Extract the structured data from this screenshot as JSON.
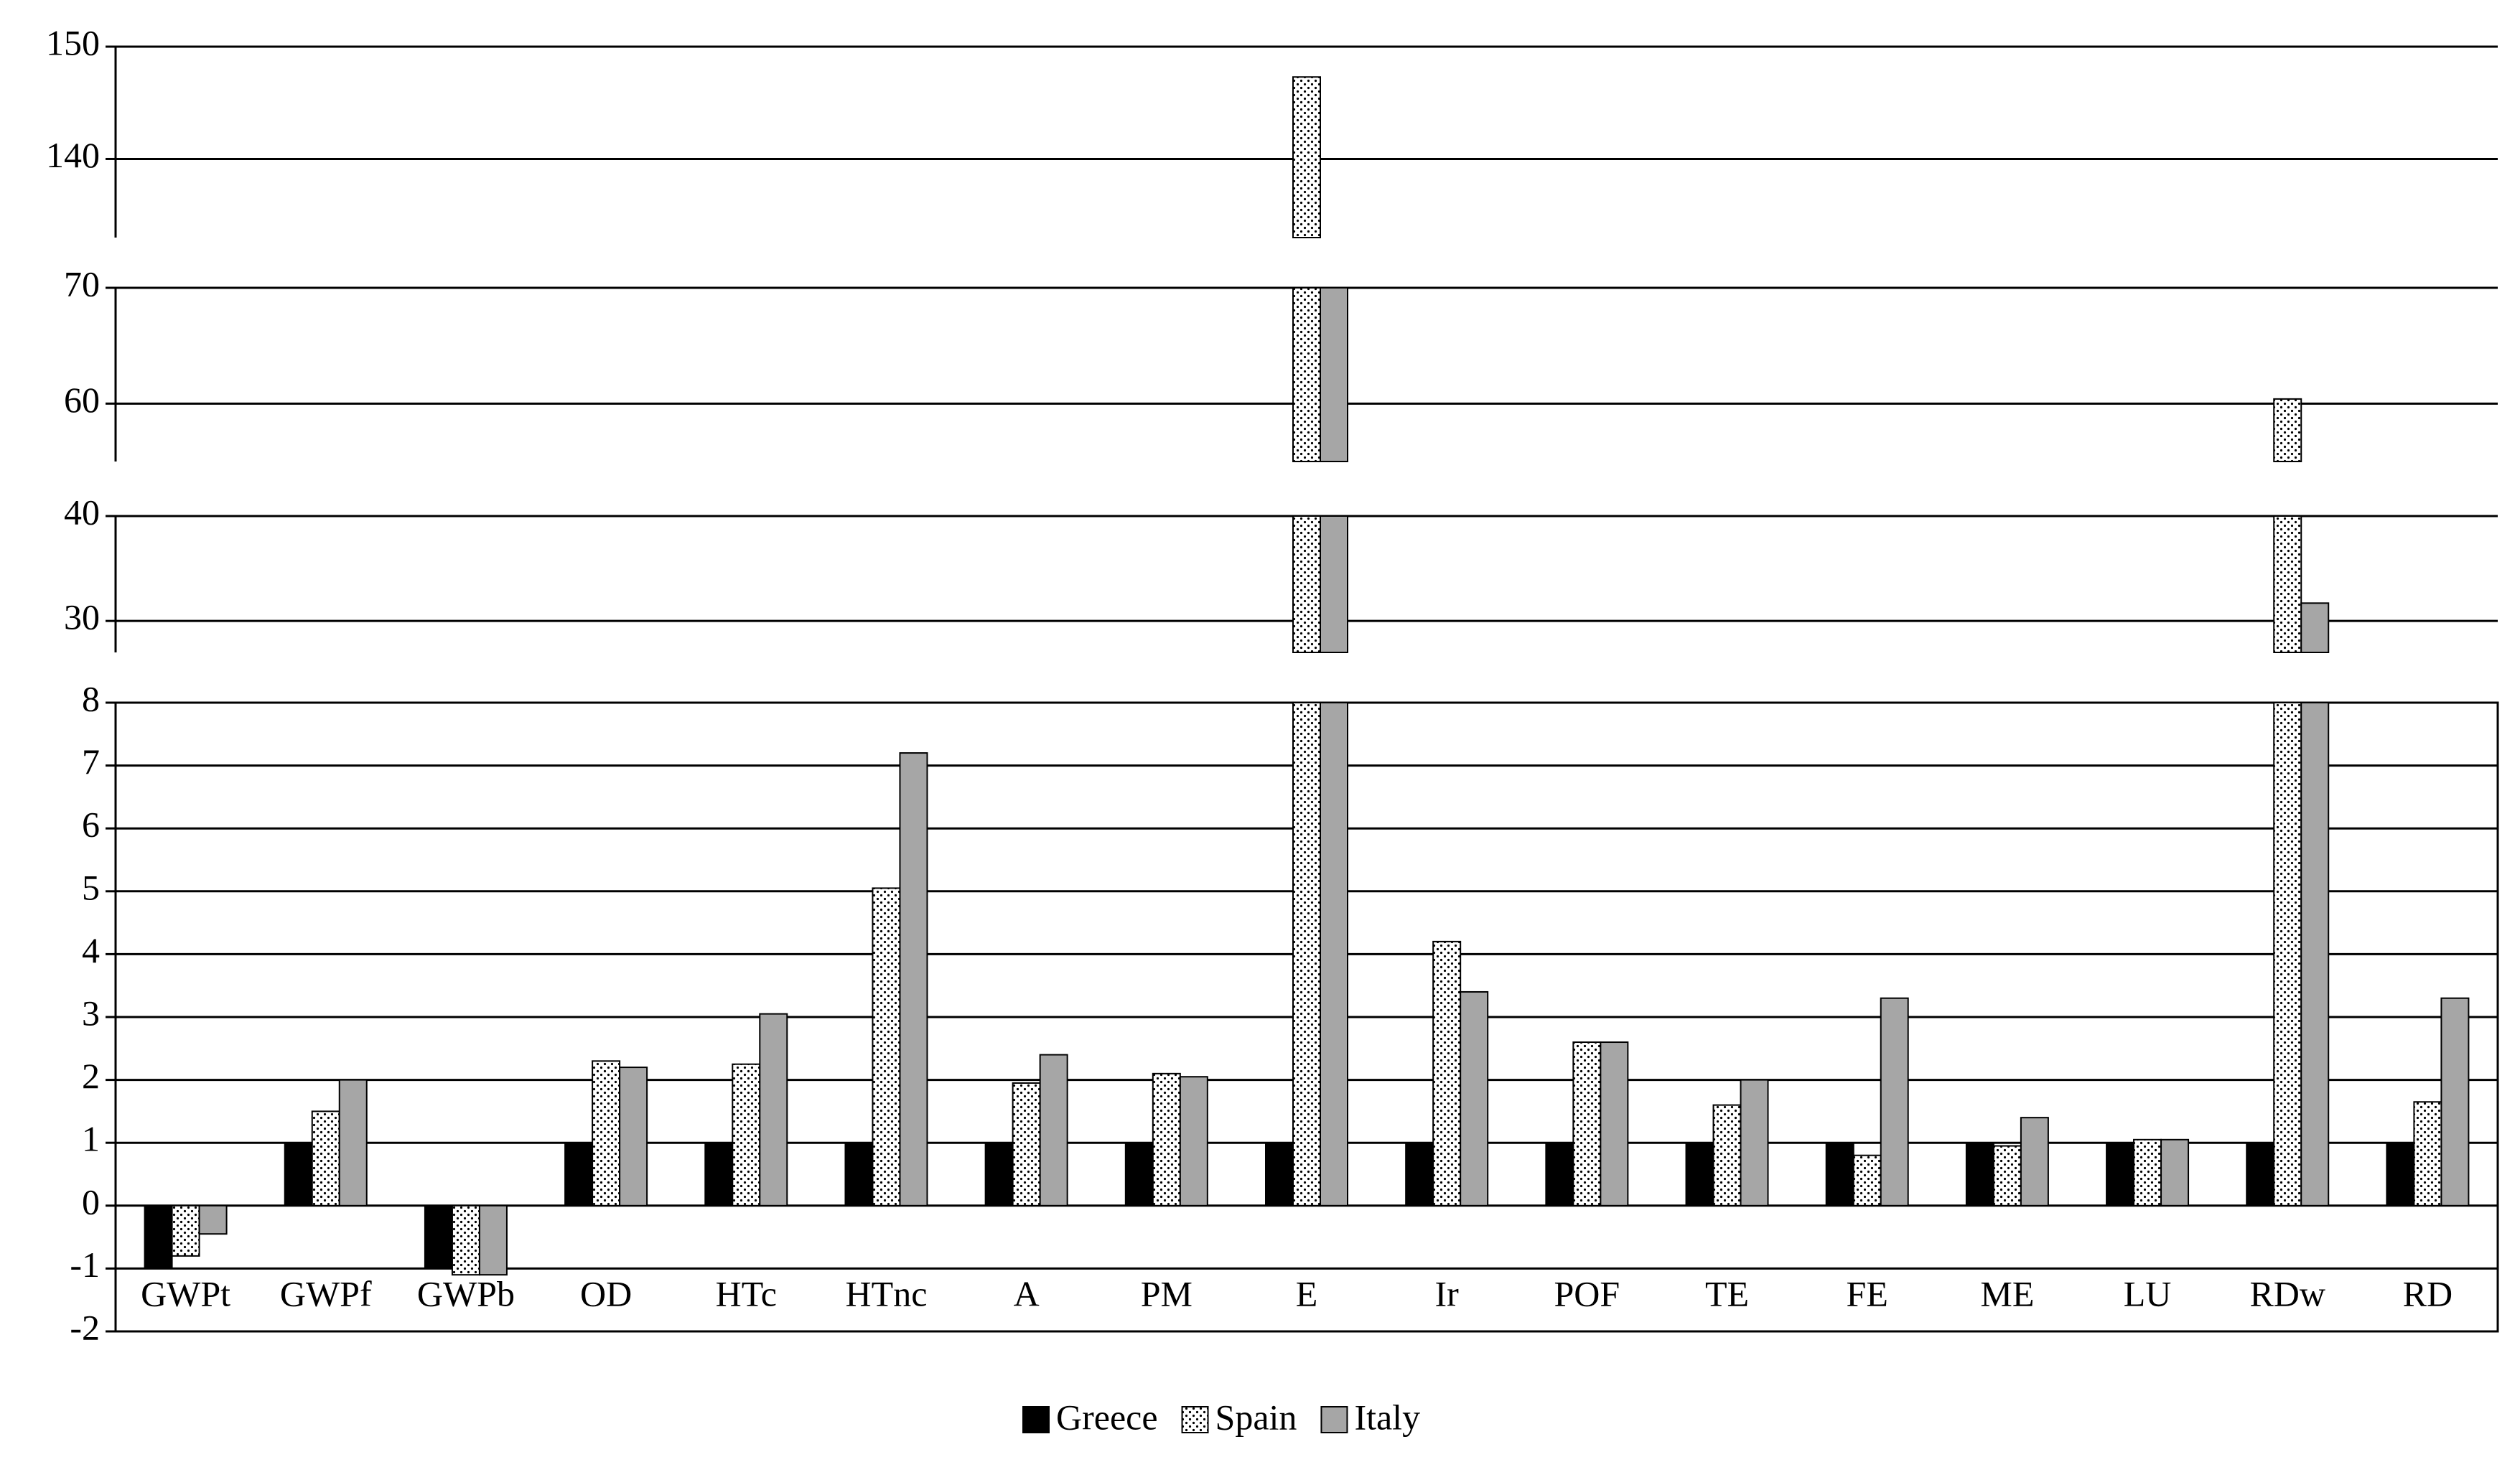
{
  "chart_data": {
    "type": "bar",
    "categories": [
      "GWPt",
      "GWPf",
      "GWPb",
      "OD",
      "HTc",
      "HTnc",
      "A",
      "PM",
      "E",
      "Ir",
      "POF",
      "TE",
      "FE",
      "ME",
      "LU",
      "RDw",
      "RD"
    ],
    "series": [
      {
        "name": "Greece",
        "color": "#000000",
        "values": [
          -1,
          1,
          -1,
          1,
          1,
          1,
          1,
          1,
          1,
          1,
          1,
          1,
          1,
          1,
          1,
          1,
          1
        ]
      },
      {
        "name": "Spain",
        "color": "#ffffff",
        "pattern": "dots",
        "values": [
          -0.8,
          1.5,
          -1.1,
          2.3,
          2.25,
          5.05,
          1.95,
          2.1,
          147.3,
          4.2,
          2.6,
          1.6,
          0.8,
          0.95,
          1.05,
          60.4,
          1.65
        ]
      },
      {
        "name": "Italy",
        "color": "#a6a6a6",
        "values": [
          -0.45,
          2.0,
          -1.1,
          2.2,
          3.05,
          7.2,
          2.4,
          2.05,
          100,
          3.4,
          2.6,
          2.0,
          3.3,
          1.4,
          1.05,
          31.7,
          3.3
        ]
      }
    ],
    "panels": [
      {
        "ylim": [
          133,
          150
        ],
        "yticks": [
          140,
          150
        ]
      },
      {
        "ylim": [
          55,
          70
        ],
        "yticks": [
          60,
          70
        ]
      },
      {
        "ylim": [
          27,
          40
        ],
        "yticks": [
          30,
          40
        ]
      },
      {
        "ylim": [
          -2,
          8
        ],
        "yticks": [
          -2,
          -1,
          0,
          1,
          2,
          3,
          4,
          5,
          6,
          7,
          8
        ]
      }
    ],
    "grid": true,
    "legend": "bottom"
  }
}
